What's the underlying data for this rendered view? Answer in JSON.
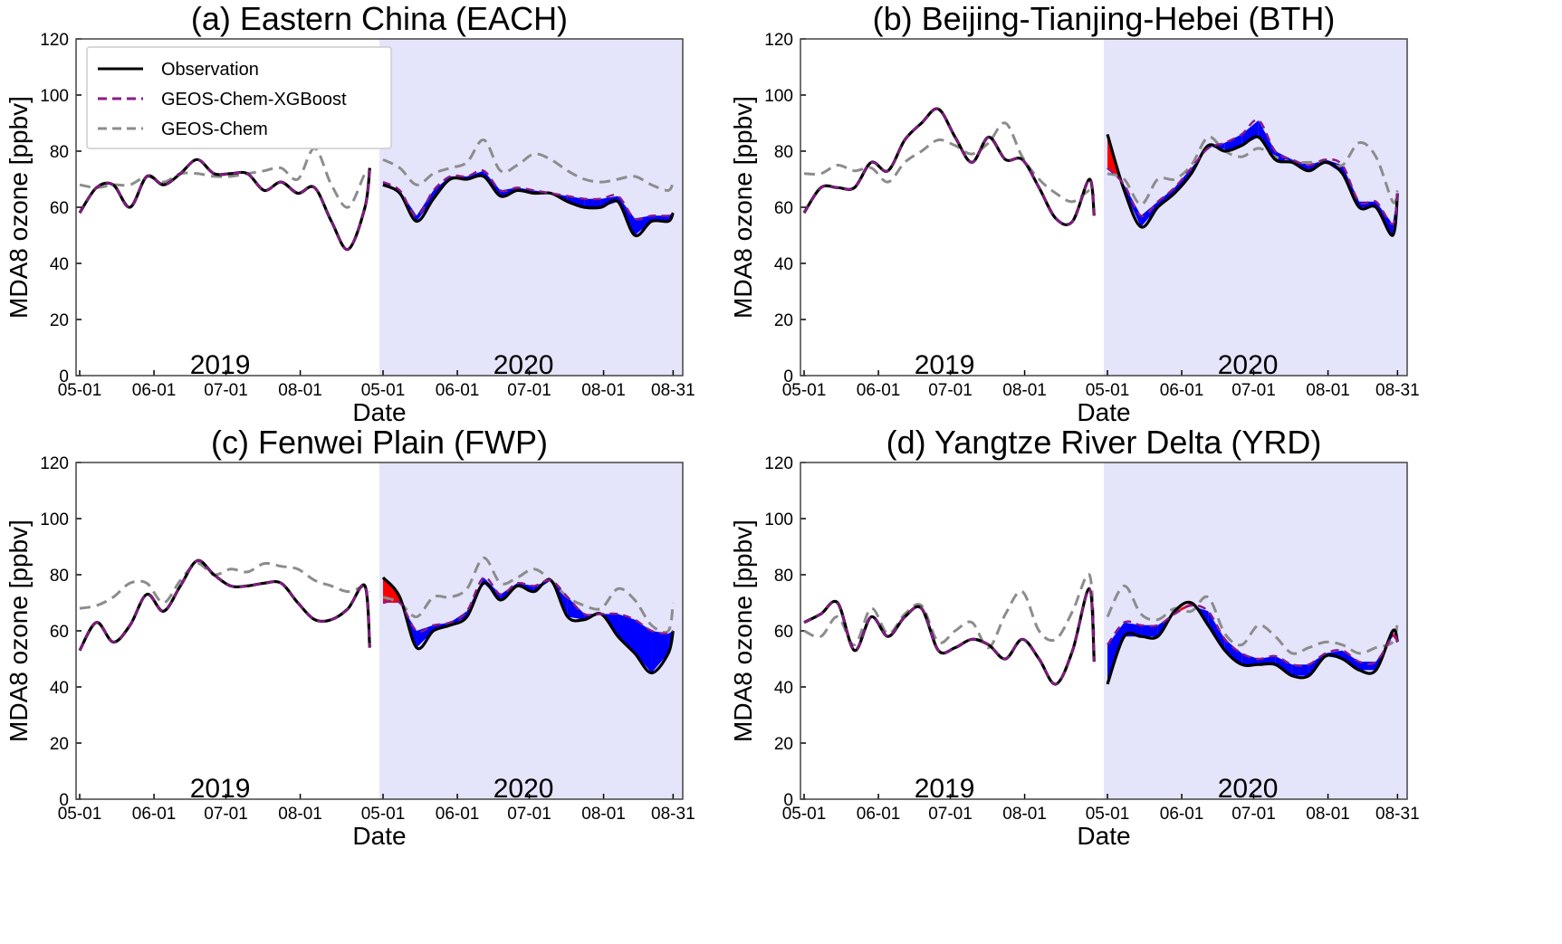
{
  "figure": {
    "legend": {
      "placement": "top-left of panel (a)",
      "entries": [
        {
          "label": "Observation",
          "color": "#000000",
          "style": "solid"
        },
        {
          "label": "GEOS-Chem-XGBoost",
          "color": "#8a1a8a",
          "style": "dashed"
        },
        {
          "label": "GEOS-Chem",
          "color": "#8c8c8c",
          "style": "dashed"
        }
      ]
    }
  },
  "chart_data": [
    {
      "type": "line",
      "title": "(a) Eastern China (EACH)",
      "xlabel": "Date",
      "ylabel": "MDA8 ozone [ppbv]",
      "ylim": [
        0,
        120
      ],
      "yticks": [
        0,
        20,
        40,
        60,
        80,
        100,
        120
      ],
      "xticks_2019": [
        "05-01",
        "06-01",
        "07-01",
        "08-01"
      ],
      "xticks_2020": [
        "05-01",
        "06-01",
        "07-01",
        "08-01",
        "08-31"
      ],
      "year_labels": [
        "2019",
        "2020"
      ],
      "shaded_period": "2020",
      "colors": {
        "shade": "#e4e4fa",
        "model_higher": "#0000ff",
        "model_lower": "#ff0000"
      },
      "series_2019": {
        "x": [
          "05-01",
          "05-08",
          "05-15",
          "05-22",
          "05-29",
          "06-05",
          "06-12",
          "06-19",
          "06-26",
          "07-03",
          "07-10",
          "07-17",
          "07-24",
          "07-31",
          "08-07",
          "08-14",
          "08-21",
          "08-28",
          "08-31"
        ],
        "observation": [
          58,
          67,
          68,
          60,
          71,
          68,
          72,
          77,
          72,
          72,
          72,
          66,
          69,
          65,
          67,
          55,
          45,
          60,
          74
        ],
        "geos_chem": [
          68,
          67,
          68,
          68,
          71,
          69,
          72,
          72,
          71,
          71,
          72,
          73,
          74,
          70,
          81,
          68,
          60,
          72,
          72
        ]
      },
      "series_2020": {
        "x": [
          "05-01",
          "05-08",
          "05-15",
          "05-22",
          "05-29",
          "06-05",
          "06-12",
          "06-19",
          "06-26",
          "07-03",
          "07-10",
          "07-17",
          "07-24",
          "07-31",
          "08-07",
          "08-14",
          "08-21",
          "08-28",
          "08-31"
        ],
        "observation": [
          68,
          65,
          55,
          63,
          70,
          70,
          71,
          64,
          66,
          65,
          65,
          62,
          60,
          60,
          62,
          50,
          55,
          55,
          58
        ],
        "geos_chem_xgboost": [
          69,
          66,
          57,
          66,
          71,
          71,
          73,
          66,
          67,
          66,
          65,
          64,
          63,
          63,
          64,
          56,
          57,
          57,
          58
        ],
        "geos_chem": [
          77,
          74,
          68,
          72,
          74,
          76,
          84,
          73,
          75,
          79,
          77,
          73,
          70,
          69,
          70,
          71,
          68,
          66,
          69
        ]
      }
    },
    {
      "type": "line",
      "title": "(b) Beijing-Tianjing-Hebei (BTH)",
      "xlabel": "Date",
      "ylabel": "MDA8 ozone [ppbv]",
      "ylim": [
        0,
        120
      ],
      "yticks": [
        0,
        20,
        40,
        60,
        80,
        100,
        120
      ],
      "xticks_2019": [
        "05-01",
        "06-01",
        "07-01",
        "08-01"
      ],
      "xticks_2020": [
        "05-01",
        "06-01",
        "07-01",
        "08-01",
        "08-31"
      ],
      "year_labels": [
        "2019",
        "2020"
      ],
      "shaded_period": "2020",
      "colors": {
        "shade": "#e4e4fa",
        "model_higher": "#0000ff",
        "model_lower": "#ff0000"
      },
      "series_2019": {
        "x": [
          "05-01",
          "05-08",
          "05-15",
          "05-22",
          "05-29",
          "06-05",
          "06-12",
          "06-19",
          "06-26",
          "07-03",
          "07-10",
          "07-17",
          "07-24",
          "07-31",
          "08-07",
          "08-14",
          "08-21",
          "08-28",
          "08-31"
        ],
        "observation": [
          58,
          67,
          67,
          67,
          76,
          73,
          84,
          90,
          95,
          85,
          76,
          85,
          77,
          77,
          67,
          56,
          55,
          70,
          57
        ],
        "geos_chem": [
          72,
          72,
          75,
          73,
          74,
          69,
          76,
          80,
          84,
          82,
          79,
          83,
          90,
          78,
          70,
          65,
          62,
          66,
          64
        ]
      },
      "series_2020": {
        "x": [
          "05-01",
          "05-08",
          "05-15",
          "05-22",
          "05-29",
          "06-05",
          "06-12",
          "06-19",
          "06-26",
          "07-03",
          "07-10",
          "07-17",
          "07-24",
          "07-31",
          "08-07",
          "08-14",
          "08-21",
          "08-28",
          "08-31"
        ],
        "observation": [
          86,
          66,
          53,
          60,
          65,
          72,
          82,
          80,
          82,
          85,
          77,
          76,
          73,
          76,
          72,
          60,
          60,
          50,
          65
        ],
        "geos_chem_xgboost": [
          74,
          68,
          57,
          62,
          67,
          74,
          81,
          83,
          86,
          91,
          80,
          77,
          75,
          77,
          75,
          62,
          62,
          54,
          65
        ],
        "geos_chem": [
          72,
          70,
          61,
          70,
          70,
          75,
          85,
          80,
          78,
          81,
          78,
          76,
          76,
          76,
          75,
          83,
          78,
          62,
          66
        ]
      }
    },
    {
      "type": "line",
      "title": "(c) Fenwei Plain (FWP)",
      "xlabel": "Date",
      "ylabel": "MDA8 ozone [ppbv]",
      "ylim": [
        0,
        120
      ],
      "yticks": [
        0,
        20,
        40,
        60,
        80,
        100,
        120
      ],
      "xticks_2019": [
        "05-01",
        "06-01",
        "07-01",
        "08-01"
      ],
      "xticks_2020": [
        "05-01",
        "06-01",
        "07-01",
        "08-01",
        "08-31"
      ],
      "year_labels": [
        "2019",
        "2020"
      ],
      "shaded_period": "2020",
      "colors": {
        "shade": "#e4e4fa",
        "model_higher": "#0000ff",
        "model_lower": "#ff0000"
      },
      "series_2019": {
        "x": [
          "05-01",
          "05-08",
          "05-15",
          "05-22",
          "05-29",
          "06-05",
          "06-12",
          "06-19",
          "06-26",
          "07-03",
          "07-10",
          "07-17",
          "07-24",
          "07-31",
          "08-07",
          "08-14",
          "08-21",
          "08-28",
          "08-31"
        ],
        "observation": [
          53,
          63,
          56,
          62,
          73,
          67,
          76,
          85,
          80,
          76,
          76,
          77,
          77,
          70,
          64,
          64,
          68,
          76,
          54
        ],
        "geos_chem": [
          68,
          69,
          72,
          77,
          77,
          70,
          78,
          84,
          80,
          82,
          81,
          84,
          83,
          82,
          78,
          76,
          74,
          76,
          74
        ]
      },
      "series_2020": {
        "x": [
          "05-01",
          "05-08",
          "05-15",
          "05-22",
          "05-29",
          "06-05",
          "06-12",
          "06-19",
          "06-26",
          "07-03",
          "07-10",
          "07-17",
          "07-24",
          "07-31",
          "08-07",
          "08-14",
          "08-21",
          "08-28",
          "08-31"
        ],
        "observation": [
          79,
          72,
          54,
          60,
          62,
          65,
          77,
          71,
          76,
          74,
          78,
          65,
          64,
          66,
          58,
          52,
          45,
          52,
          60
        ],
        "geos_chem_xgboost": [
          70,
          70,
          60,
          62,
          63,
          67,
          79,
          73,
          77,
          76,
          78,
          72,
          66,
          66,
          66,
          64,
          60,
          59,
          60
        ],
        "geos_chem": [
          72,
          70,
          65,
          72,
          72,
          75,
          86,
          77,
          79,
          82,
          78,
          72,
          69,
          68,
          75,
          71,
          62,
          60,
          70
        ]
      }
    },
    {
      "type": "line",
      "title": "(d) Yangtze River Delta (YRD)",
      "xlabel": "Date",
      "ylabel": "MDA8 ozone [ppbv]",
      "ylim": [
        0,
        120
      ],
      "yticks": [
        0,
        20,
        40,
        60,
        80,
        100,
        120
      ],
      "xticks_2019": [
        "05-01",
        "06-01",
        "07-01",
        "08-01"
      ],
      "xticks_2020": [
        "05-01",
        "06-01",
        "07-01",
        "08-01",
        "08-31"
      ],
      "year_labels": [
        "2019",
        "2020"
      ],
      "shaded_period": "2020",
      "colors": {
        "shade": "#e4e4fa",
        "model_higher": "#0000ff",
        "model_lower": "#ff0000"
      },
      "series_2019": {
        "x": [
          "05-01",
          "05-08",
          "05-15",
          "05-22",
          "05-29",
          "06-05",
          "06-12",
          "06-19",
          "06-26",
          "07-03",
          "07-10",
          "07-17",
          "07-24",
          "07-31",
          "08-07",
          "08-14",
          "08-21",
          "08-28",
          "08-31"
        ],
        "observation": [
          63,
          66,
          70,
          53,
          65,
          58,
          65,
          68,
          53,
          54,
          57,
          55,
          50,
          57,
          50,
          41,
          53,
          75,
          49
        ],
        "geos_chem": [
          60,
          58,
          65,
          55,
          68,
          59,
          66,
          69,
          56,
          60,
          63,
          54,
          66,
          74,
          60,
          57,
          67,
          80,
          56
        ]
      },
      "series_2020": {
        "x": [
          "05-01",
          "05-08",
          "05-15",
          "05-22",
          "05-29",
          "06-05",
          "06-12",
          "06-19",
          "06-26",
          "07-03",
          "07-10",
          "07-17",
          "07-24",
          "07-31",
          "08-07",
          "08-14",
          "08-21",
          "08-28",
          "08-31"
        ],
        "observation": [
          41,
          58,
          58,
          58,
          67,
          70,
          62,
          53,
          48,
          48,
          48,
          44,
          44,
          51,
          50,
          46,
          46,
          60,
          56
        ],
        "geos_chem_xgboost": [
          55,
          63,
          62,
          62,
          66,
          69,
          67,
          57,
          52,
          50,
          51,
          48,
          48,
          52,
          53,
          49,
          49,
          58,
          56
        ],
        "geos_chem": [
          65,
          76,
          66,
          64,
          68,
          67,
          72,
          59,
          55,
          62,
          58,
          52,
          54,
          56,
          55,
          52,
          54,
          56,
          63
        ]
      }
    }
  ]
}
